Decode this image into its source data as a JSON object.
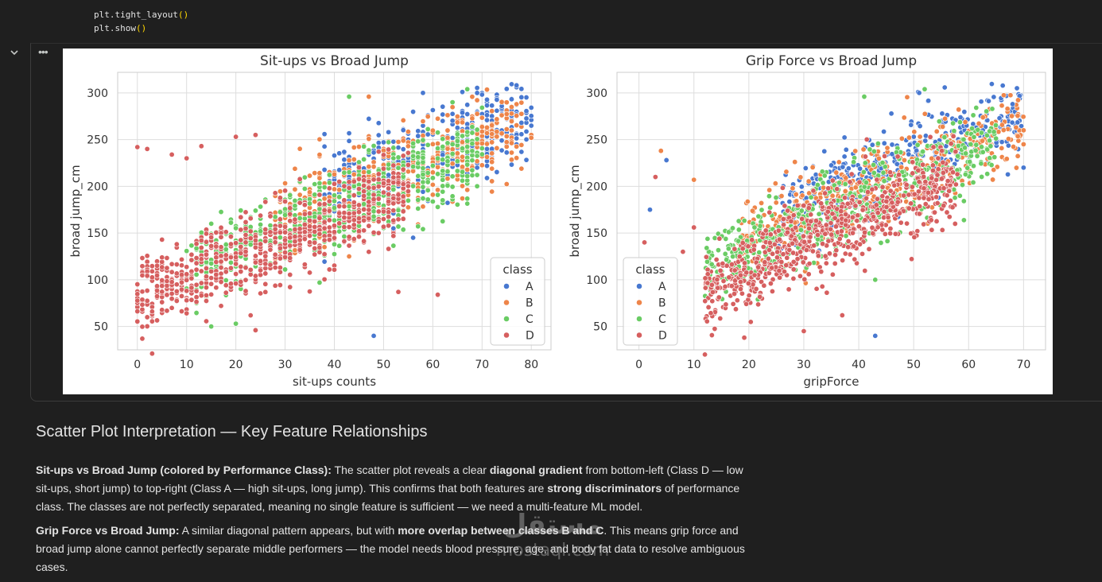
{
  "code": {
    "line1_prefix": "plt.tight_layout",
    "line2_prefix": "plt.show",
    "parens": "()"
  },
  "toolbar": {
    "collapse_icon": "chevron-down-icon",
    "more_icon": "more-horiz-icon",
    "more_label": "•••"
  },
  "chart_data": [
    {
      "type": "scatter",
      "title": "Sit-ups vs Broad Jump",
      "xlabel": "sit-ups counts",
      "ylabel": "broad jump_cm",
      "xlim": [
        -4,
        84
      ],
      "ylim": [
        25,
        322
      ],
      "xticks": [
        0,
        10,
        20,
        30,
        40,
        50,
        60,
        70,
        80
      ],
      "yticks": [
        50,
        100,
        150,
        200,
        250,
        300
      ],
      "grid": true,
      "legend": {
        "title": "class",
        "placement": "bottom-right"
      },
      "series": [
        {
          "name": "A",
          "color": "#4878d0",
          "cluster": {
            "x_range": [
              38,
              80
            ],
            "center_slope": 2.0,
            "center_intercept": 120
          },
          "points": [
            [
              48,
              40
            ],
            [
              58,
              300
            ],
            [
              66,
              301
            ],
            [
              78,
              268
            ],
            [
              69,
              220
            ],
            [
              71,
              240
            ],
            [
              56,
              145
            ],
            [
              52,
              155
            ]
          ]
        },
        {
          "name": "B",
          "color": "#ee854a",
          "cluster": {
            "x_range": [
              28,
              78
            ],
            "center_slope": 2.05,
            "center_intercept": 105
          },
          "points": [
            [
              47,
              296
            ],
            [
              80,
              255
            ],
            [
              80,
              252
            ],
            [
              43,
              125
            ],
            [
              38,
              135
            ]
          ]
        },
        {
          "name": "C",
          "color": "#6acc64",
          "cluster": {
            "x_range": [
              10,
              70
            ],
            "center_slope": 2.1,
            "center_intercept": 90
          },
          "points": [
            [
              67,
              304
            ],
            [
              43,
              296
            ],
            [
              20,
              53
            ],
            [
              15,
              50
            ],
            [
              37,
              97
            ],
            [
              64,
              290
            ]
          ]
        },
        {
          "name": "D",
          "color": "#d65f5f",
          "cluster": {
            "x_range": [
              0,
              55
            ],
            "center_slope": 2.0,
            "center_intercept": 82
          },
          "points": [
            [
              0,
              242
            ],
            [
              2,
              240
            ],
            [
              7,
              234
            ],
            [
              10,
              230
            ],
            [
              20,
              253
            ],
            [
              24,
              255
            ],
            [
              3,
              21
            ],
            [
              1,
              37
            ],
            [
              24,
              46
            ],
            [
              61,
              84
            ],
            [
              53,
              87
            ],
            [
              13,
              243
            ]
          ]
        }
      ]
    },
    {
      "type": "scatter",
      "title": "Grip Force vs Broad Jump",
      "xlabel": "gripForce",
      "ylabel": "broad jump_cm",
      "xlim": [
        -4,
        74
      ],
      "ylim": [
        25,
        322
      ],
      "xticks": [
        0,
        10,
        20,
        30,
        40,
        50,
        60,
        70
      ],
      "yticks": [
        50,
        100,
        150,
        200,
        250,
        300
      ],
      "grid": true,
      "legend": {
        "title": "class",
        "placement": "bottom-left"
      },
      "series": [
        {
          "name": "A",
          "color": "#4878d0",
          "cluster": {
            "x_range": [
              25,
              70
            ],
            "center_slope": 2.4,
            "center_intercept": 110
          },
          "points": [
            [
              2,
              175
            ],
            [
              5,
              228
            ],
            [
              43,
              40
            ],
            [
              70,
              220
            ],
            [
              68,
              288
            ],
            [
              51,
              300
            ]
          ]
        },
        {
          "name": "B",
          "color": "#ee854a",
          "cluster": {
            "x_range": [
              18,
              70
            ],
            "center_slope": 2.5,
            "center_intercept": 95
          },
          "points": [
            [
              4,
              238
            ],
            [
              70,
              260
            ],
            [
              10,
              207
            ],
            [
              70,
              245
            ]
          ]
        },
        {
          "name": "C",
          "color": "#6acc64",
          "cluster": {
            "x_range": [
              12,
              65
            ],
            "center_slope": 2.6,
            "center_intercept": 78
          },
          "points": [
            [
              52,
              304
            ],
            [
              43,
              100
            ],
            [
              41,
              296
            ],
            [
              64,
              243
            ]
          ]
        },
        {
          "name": "D",
          "color": "#d65f5f",
          "cluster": {
            "x_range": [
              12,
              58
            ],
            "center_slope": 2.7,
            "center_intercept": 55
          },
          "points": [
            [
              1,
              140
            ],
            [
              3,
              210
            ],
            [
              10,
              156
            ],
            [
              12,
              20
            ],
            [
              37,
              62
            ],
            [
              30,
              45
            ],
            [
              8,
              130
            ]
          ]
        }
      ]
    }
  ],
  "markdown": {
    "heading": "Scatter Plot Interpretation — Key Feature Relationships",
    "p1": {
      "b1": "Sit-ups vs Broad Jump (colored by Performance Class):",
      "t1": " The scatter plot reveals a clear ",
      "b2": "diagonal gradient",
      "t2": " from bottom-left (Class D — low sit-ups, short jump) to top-right (Class A — high sit-ups, long jump). This confirms that both features are ",
      "b3": "strong discriminators",
      "t3": " of performance class. The classes are not perfectly separated, meaning no single feature is sufficient — we need a multi-feature ML model."
    },
    "p2": {
      "b1": "Grip Force vs Broad Jump:",
      "t1": " A similar diagonal pattern appears, but with ",
      "b2": "more overlap between classes B and C",
      "t2": ". This means grip force and broad jump alone cannot perfectly separate middle performers — the model needs blood pressure, age, and body fat data to resolve ambiguous cases."
    }
  },
  "watermark": {
    "arabic": "مستقل",
    "latin": "mostaql.com"
  }
}
